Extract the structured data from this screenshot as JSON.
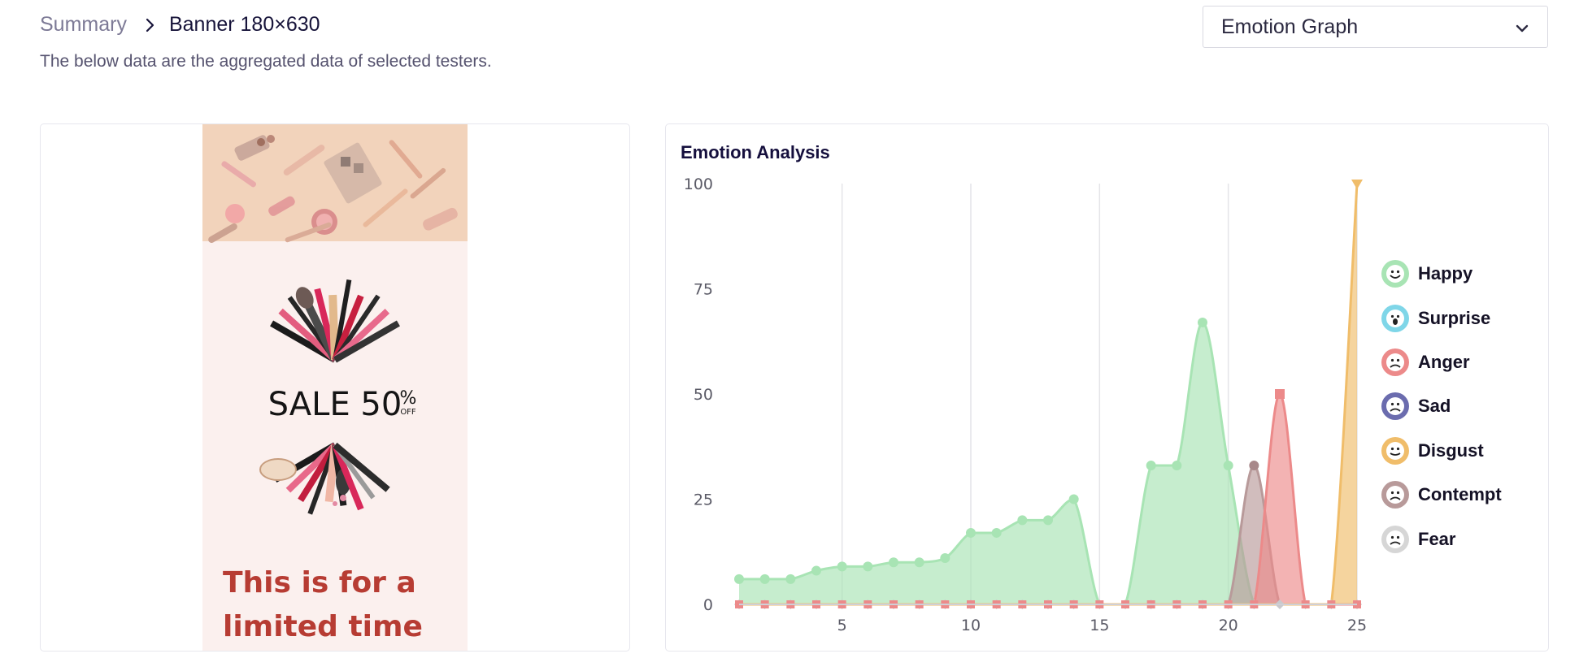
{
  "breadcrumb": {
    "parent": "Summary",
    "current": "Banner 180×630"
  },
  "subtitle": "The below data are the aggregated data of selected testers.",
  "view_select": {
    "selected": "Emotion Graph"
  },
  "banner": {
    "sale_text": "SALE 50",
    "percent": "%",
    "off": "OFF",
    "line1": "This is for a",
    "line2": "limited time"
  },
  "chart_data": {
    "type": "area",
    "title": "Emotion Analysis",
    "xlim": [
      1,
      25
    ],
    "ylim": [
      0,
      100
    ],
    "x_ticks": [
      5,
      10,
      15,
      20,
      25
    ],
    "y_ticks": [
      0,
      25,
      50,
      75,
      100
    ],
    "x": [
      1,
      2,
      3,
      4,
      5,
      6,
      7,
      8,
      9,
      10,
      11,
      12,
      13,
      14,
      15,
      16,
      17,
      18,
      19,
      20,
      21,
      22,
      23,
      24,
      25
    ],
    "series": [
      {
        "name": "Happy",
        "color": "#a8e4b4",
        "values": [
          6,
          6,
          6,
          8,
          9,
          9,
          10,
          10,
          11,
          17,
          17,
          20,
          20,
          25,
          0,
          0,
          33,
          33,
          67,
          33,
          0,
          0,
          0,
          0,
          0
        ]
      },
      {
        "name": "Surprise",
        "color": "#7fd6e8",
        "values": [
          0,
          0,
          0,
          0,
          0,
          0,
          0,
          0,
          0,
          0,
          0,
          0,
          0,
          0,
          0,
          0,
          0,
          0,
          0,
          0,
          0,
          0,
          0,
          0,
          0
        ]
      },
      {
        "name": "Anger",
        "color": "#ec8a8a",
        "values": [
          0,
          0,
          0,
          0,
          0,
          0,
          0,
          0,
          0,
          0,
          0,
          0,
          0,
          0,
          0,
          0,
          0,
          0,
          0,
          0,
          0,
          50,
          0,
          0,
          0
        ]
      },
      {
        "name": "Sad",
        "color": "#6b6cae",
        "values": [
          0,
          0,
          0,
          0,
          0,
          0,
          0,
          0,
          0,
          0,
          0,
          0,
          0,
          0,
          0,
          0,
          0,
          0,
          0,
          0,
          0,
          0,
          0,
          0,
          0
        ]
      },
      {
        "name": "Disgust",
        "color": "#f0bd6a",
        "values": [
          0,
          0,
          0,
          0,
          0,
          0,
          0,
          0,
          0,
          0,
          0,
          0,
          0,
          0,
          0,
          0,
          0,
          0,
          0,
          0,
          0,
          0,
          0,
          0,
          100
        ]
      },
      {
        "name": "Contempt",
        "color": "#b89a9a",
        "values": [
          0,
          0,
          0,
          0,
          0,
          0,
          0,
          0,
          0,
          0,
          0,
          0,
          0,
          0,
          0,
          0,
          0,
          0,
          0,
          0,
          33,
          0,
          0,
          0,
          0
        ]
      },
      {
        "name": "Fear",
        "color": "#d6d6d6",
        "values": [
          0,
          0,
          0,
          0,
          0,
          0,
          0,
          0,
          0,
          0,
          0,
          0,
          0,
          0,
          0,
          0,
          0,
          0,
          0,
          0,
          0,
          0,
          0,
          0,
          0
        ]
      }
    ],
    "legend": [
      "Happy",
      "Surprise",
      "Anger",
      "Sad",
      "Disgust",
      "Contempt",
      "Fear"
    ],
    "legend_position": "right"
  }
}
